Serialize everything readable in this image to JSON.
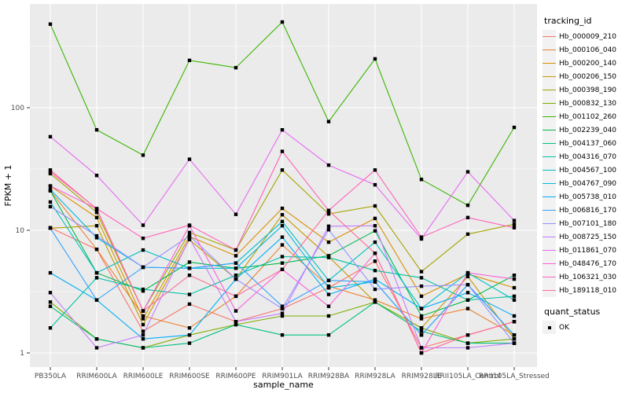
{
  "chart_data": {
    "type": "line",
    "title": "",
    "xlabel": "sample_name",
    "ylabel": "FPKM + 1",
    "y_scale": "log10",
    "y_tick_values": [
      100,
      10,
      1
    ],
    "y_minor_values": [
      316.2,
      31.62,
      3.162
    ],
    "ylim": [
      0.95,
      700
    ],
    "grid": true,
    "legend_position": "right",
    "panel_bg": "#EBEBEB",
    "grid_color": "#FFFFFF",
    "tick_text_color": "#4D4D4D",
    "axis_title_color": "#000000",
    "point_color": "#000000",
    "legend_key_bg": "#F2F2F2",
    "tracking_legend_title": "tracking_id",
    "quant_legend": {
      "title": "quant_status",
      "items": [
        {
          "label": "OK",
          "marker": "square"
        }
      ]
    },
    "categories": [
      "PB350LA",
      "RRIM600LA",
      "RRIM600LE",
      "RRIM600SE",
      "RRIM600PE",
      "RRIM901LA",
      "RRIM928BA",
      "RRIM928LA",
      "RRIM928LE",
      "RRII105LA_Control",
      "RRII105LA_Stressed"
    ],
    "series": [
      {
        "name": "Hb_000009_210",
        "color": "#F8766D",
        "values": [
          10.5,
          7.0,
          1.5,
          2.5,
          1.8,
          2.3,
          3.4,
          5.6,
          1.1,
          1.4,
          1.8
        ]
      },
      {
        "name": "Hb_000106_040",
        "color": "#EA8331",
        "values": [
          21,
          7.0,
          2.0,
          1.6,
          2.9,
          7.6,
          3.5,
          2.7,
          1.9,
          2.3,
          1.4
        ]
      },
      {
        "name": "Hb_000200_140",
        "color": "#D89000",
        "values": [
          23,
          12.7,
          1.9,
          8.9,
          6.2,
          15.1,
          8.0,
          12.5,
          2.9,
          4.4,
          3.4
        ]
      },
      {
        "name": "Hb_000206_150",
        "color": "#C09B00",
        "values": [
          10.4,
          10.9,
          1.7,
          8.4,
          4.0,
          13.4,
          6.1,
          2.6,
          1.6,
          4.2,
          1.3
        ]
      },
      {
        "name": "Hb_000398_190",
        "color": "#A3A500",
        "values": [
          29,
          14,
          2.2,
          9.6,
          6.9,
          31,
          13.6,
          15.8,
          4.6,
          9.3,
          11.2
        ]
      },
      {
        "name": "Hb_000832_130",
        "color": "#7CAE00",
        "values": [
          2.6,
          1.3,
          1.1,
          1.4,
          1.7,
          2.0,
          2.0,
          2.6,
          1.6,
          1.2,
          1.3
        ]
      },
      {
        "name": "Hb_001102_260",
        "color": "#39B600",
        "values": [
          480,
          66,
          41,
          243,
          212,
          500,
          77,
          250,
          26,
          16,
          69
        ]
      },
      {
        "name": "Hb_002239_040",
        "color": "#00BB4E",
        "values": [
          21,
          4.5,
          3.2,
          5.5,
          4.9,
          5.4,
          6.2,
          9.9,
          2.0,
          2.7,
          4.3
        ]
      },
      {
        "name": "Hb_004137_060",
        "color": "#00BF7D",
        "values": [
          2.4,
          1.3,
          1.1,
          1.2,
          1.7,
          1.4,
          1.4,
          2.6,
          1.5,
          1.2,
          1.2
        ]
      },
      {
        "name": "Hb_004316_070",
        "color": "#00C1A3",
        "values": [
          1.6,
          4.1,
          3.3,
          3.0,
          4.3,
          6.1,
          6.0,
          4.7,
          4.1,
          2.7,
          2.9
        ]
      },
      {
        "name": "Hb_004567_100",
        "color": "#00BFC4",
        "values": [
          17,
          4.5,
          6.9,
          4.9,
          5.4,
          11.8,
          3.9,
          8.0,
          2.3,
          4.5,
          2.7
        ]
      },
      {
        "name": "Hb_004767_090",
        "color": "#00BAE0",
        "values": [
          21.5,
          8.7,
          5.0,
          4.9,
          4.9,
          10.9,
          3.4,
          3.8,
          1.4,
          3.6,
          1.4
        ]
      },
      {
        "name": "Hb_005738_010",
        "color": "#00B0F6",
        "values": [
          4.5,
          2.7,
          1.3,
          1.4,
          4.0,
          8.8,
          3.0,
          4.0,
          2.3,
          3.1,
          2.0
        ]
      },
      {
        "name": "Hb_006816_170",
        "color": "#35A2FF",
        "values": [
          10.4,
          2.7,
          5.0,
          4.9,
          5.4,
          2.4,
          3.9,
          3.8,
          1.4,
          3.6,
          1.4
        ]
      },
      {
        "name": "Hb_007101_180",
        "color": "#9590FF",
        "values": [
          15.6,
          9.0,
          5.0,
          9.0,
          4.0,
          2.3,
          10.1,
          3.3,
          3.5,
          3.6,
          1.2
        ]
      },
      {
        "name": "Hb_008725_150",
        "color": "#C77CFF",
        "values": [
          3.1,
          1.1,
          1.4,
          8.6,
          1.8,
          2.1,
          10.8,
          10.9,
          1.1,
          1.1,
          1.2
        ]
      },
      {
        "name": "Hb_011861_070",
        "color": "#E76BF3",
        "values": [
          58,
          28,
          11,
          38,
          13.5,
          66,
          34,
          23.5,
          8.5,
          30,
          12
        ]
      },
      {
        "name": "Hb_048476_170",
        "color": "#FA62DB",
        "values": [
          23,
          15,
          2.2,
          10.9,
          2.2,
          4.8,
          2.4,
          6.5,
          1.0,
          4.5,
          4.0
        ]
      },
      {
        "name": "Hb_106321_030",
        "color": "#FF62BC",
        "values": [
          30,
          15,
          8.6,
          11,
          6.9,
          44,
          14.5,
          31,
          8.8,
          12.7,
          10.5
        ]
      },
      {
        "name": "Hb_189118_010",
        "color": "#FF6A98",
        "values": [
          31,
          14.9,
          2.2,
          4.3,
          2.9,
          4.8,
          14.5,
          6.5,
          1.0,
          1.4,
          1.8
        ]
      }
    ]
  }
}
